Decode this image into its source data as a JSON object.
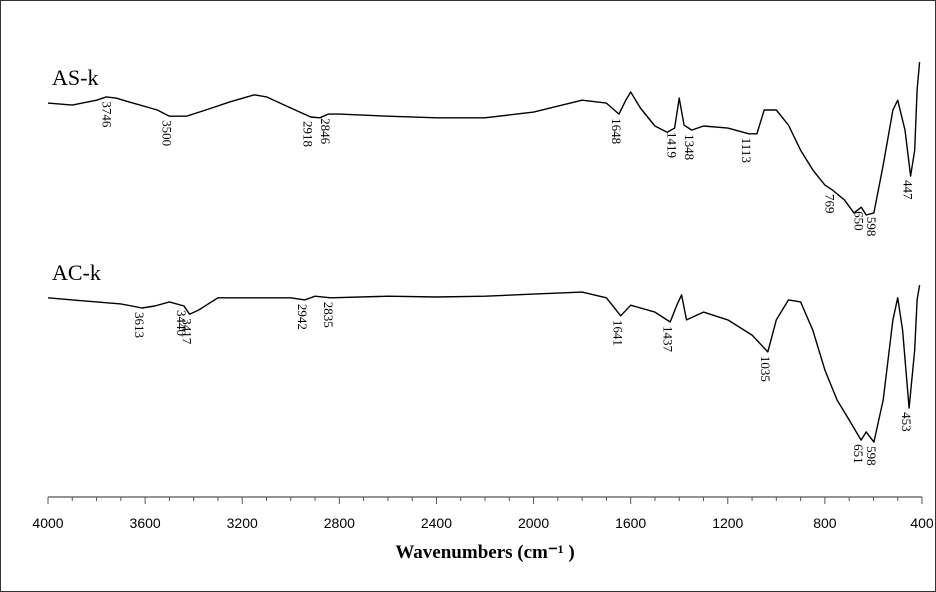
{
  "chart_data": {
    "type": "line",
    "x_label": "Wavenumbers (cm⁻¹ )",
    "xlim": [
      4000,
      400
    ],
    "xticks": [
      4000,
      3600,
      3200,
      2800,
      2400,
      2000,
      1600,
      1200,
      800,
      400
    ],
    "ylim": [
      0,
      100
    ],
    "series": [
      {
        "name": "AS-k",
        "color": "#000000",
        "x": [
          4000,
          3900,
          3800,
          3760,
          3720,
          3650,
          3550,
          3500,
          3430,
          3350,
          3250,
          3150,
          3100,
          3000,
          2918,
          2880,
          2846,
          2800,
          2600,
          2400,
          2200,
          2000,
          1800,
          1700,
          1648,
          1620,
          1600,
          1560,
          1500,
          1450,
          1419,
          1400,
          1380,
          1348,
          1300,
          1200,
          1113,
          1080,
          1050,
          1000,
          950,
          900,
          850,
          800,
          769,
          720,
          680,
          650,
          630,
          598,
          560,
          520,
          500,
          470,
          447,
          430,
          420,
          410
        ],
        "values": [
          89.5,
          89.0,
          90.2,
          91.0,
          90.7,
          89.5,
          87.8,
          86.3,
          86.3,
          87.8,
          89.8,
          91.5,
          91.0,
          88.3,
          86.1,
          85.9,
          86.8,
          86.8,
          86.3,
          85.9,
          85.9,
          87.3,
          90.2,
          89.5,
          86.8,
          90.2,
          92.2,
          88.3,
          83.9,
          82.4,
          83.4,
          90.7,
          84.1,
          82.9,
          83.9,
          83.4,
          82.0,
          82.0,
          87.8,
          87.8,
          84.1,
          78.0,
          73.2,
          69.5,
          68.3,
          65.9,
          62.7,
          64.1,
          62.2,
          62.7,
          74.4,
          87.8,
          90.2,
          82.9,
          71.7,
          78.0,
          92.7,
          99.5
        ],
        "peaks": [
          3746,
          3500,
          2918,
          2846,
          1648,
          1419,
          1348,
          1113,
          769,
          650,
          598,
          447
        ]
      },
      {
        "name": "AC-k",
        "color": "#000000",
        "x": [
          4000,
          3900,
          3800,
          3700,
          3613,
          3560,
          3500,
          3440,
          3417,
          3380,
          3300,
          3200,
          3000,
          2942,
          2900,
          2835,
          2600,
          2400,
          2200,
          2000,
          1800,
          1700,
          1641,
          1600,
          1500,
          1437,
          1410,
          1390,
          1370,
          1300,
          1200,
          1100,
          1035,
          1000,
          950,
          900,
          850,
          800,
          750,
          700,
          651,
          630,
          598,
          560,
          520,
          500,
          480,
          453,
          430,
          420,
          410
        ],
        "values": [
          42.0,
          41.5,
          41.0,
          40.5,
          39.5,
          40.0,
          41.0,
          40.0,
          38.0,
          39.0,
          42.0,
          42.0,
          42.0,
          41.5,
          42.4,
          42.0,
          42.4,
          42.2,
          42.4,
          42.9,
          43.4,
          42.0,
          37.6,
          40.2,
          38.5,
          36.1,
          40.2,
          42.7,
          36.6,
          38.5,
          36.6,
          32.9,
          28.8,
          36.6,
          41.5,
          41.0,
          34.1,
          24.4,
          17.1,
          12.2,
          7.3,
          9.3,
          6.8,
          17.1,
          36.6,
          42.0,
          34.1,
          15.1,
          29.3,
          41.5,
          45.1
        ],
        "peaks": [
          3440,
          3613,
          3417,
          2942,
          2835,
          1641,
          1437,
          1035,
          651,
          598,
          453
        ]
      }
    ]
  }
}
